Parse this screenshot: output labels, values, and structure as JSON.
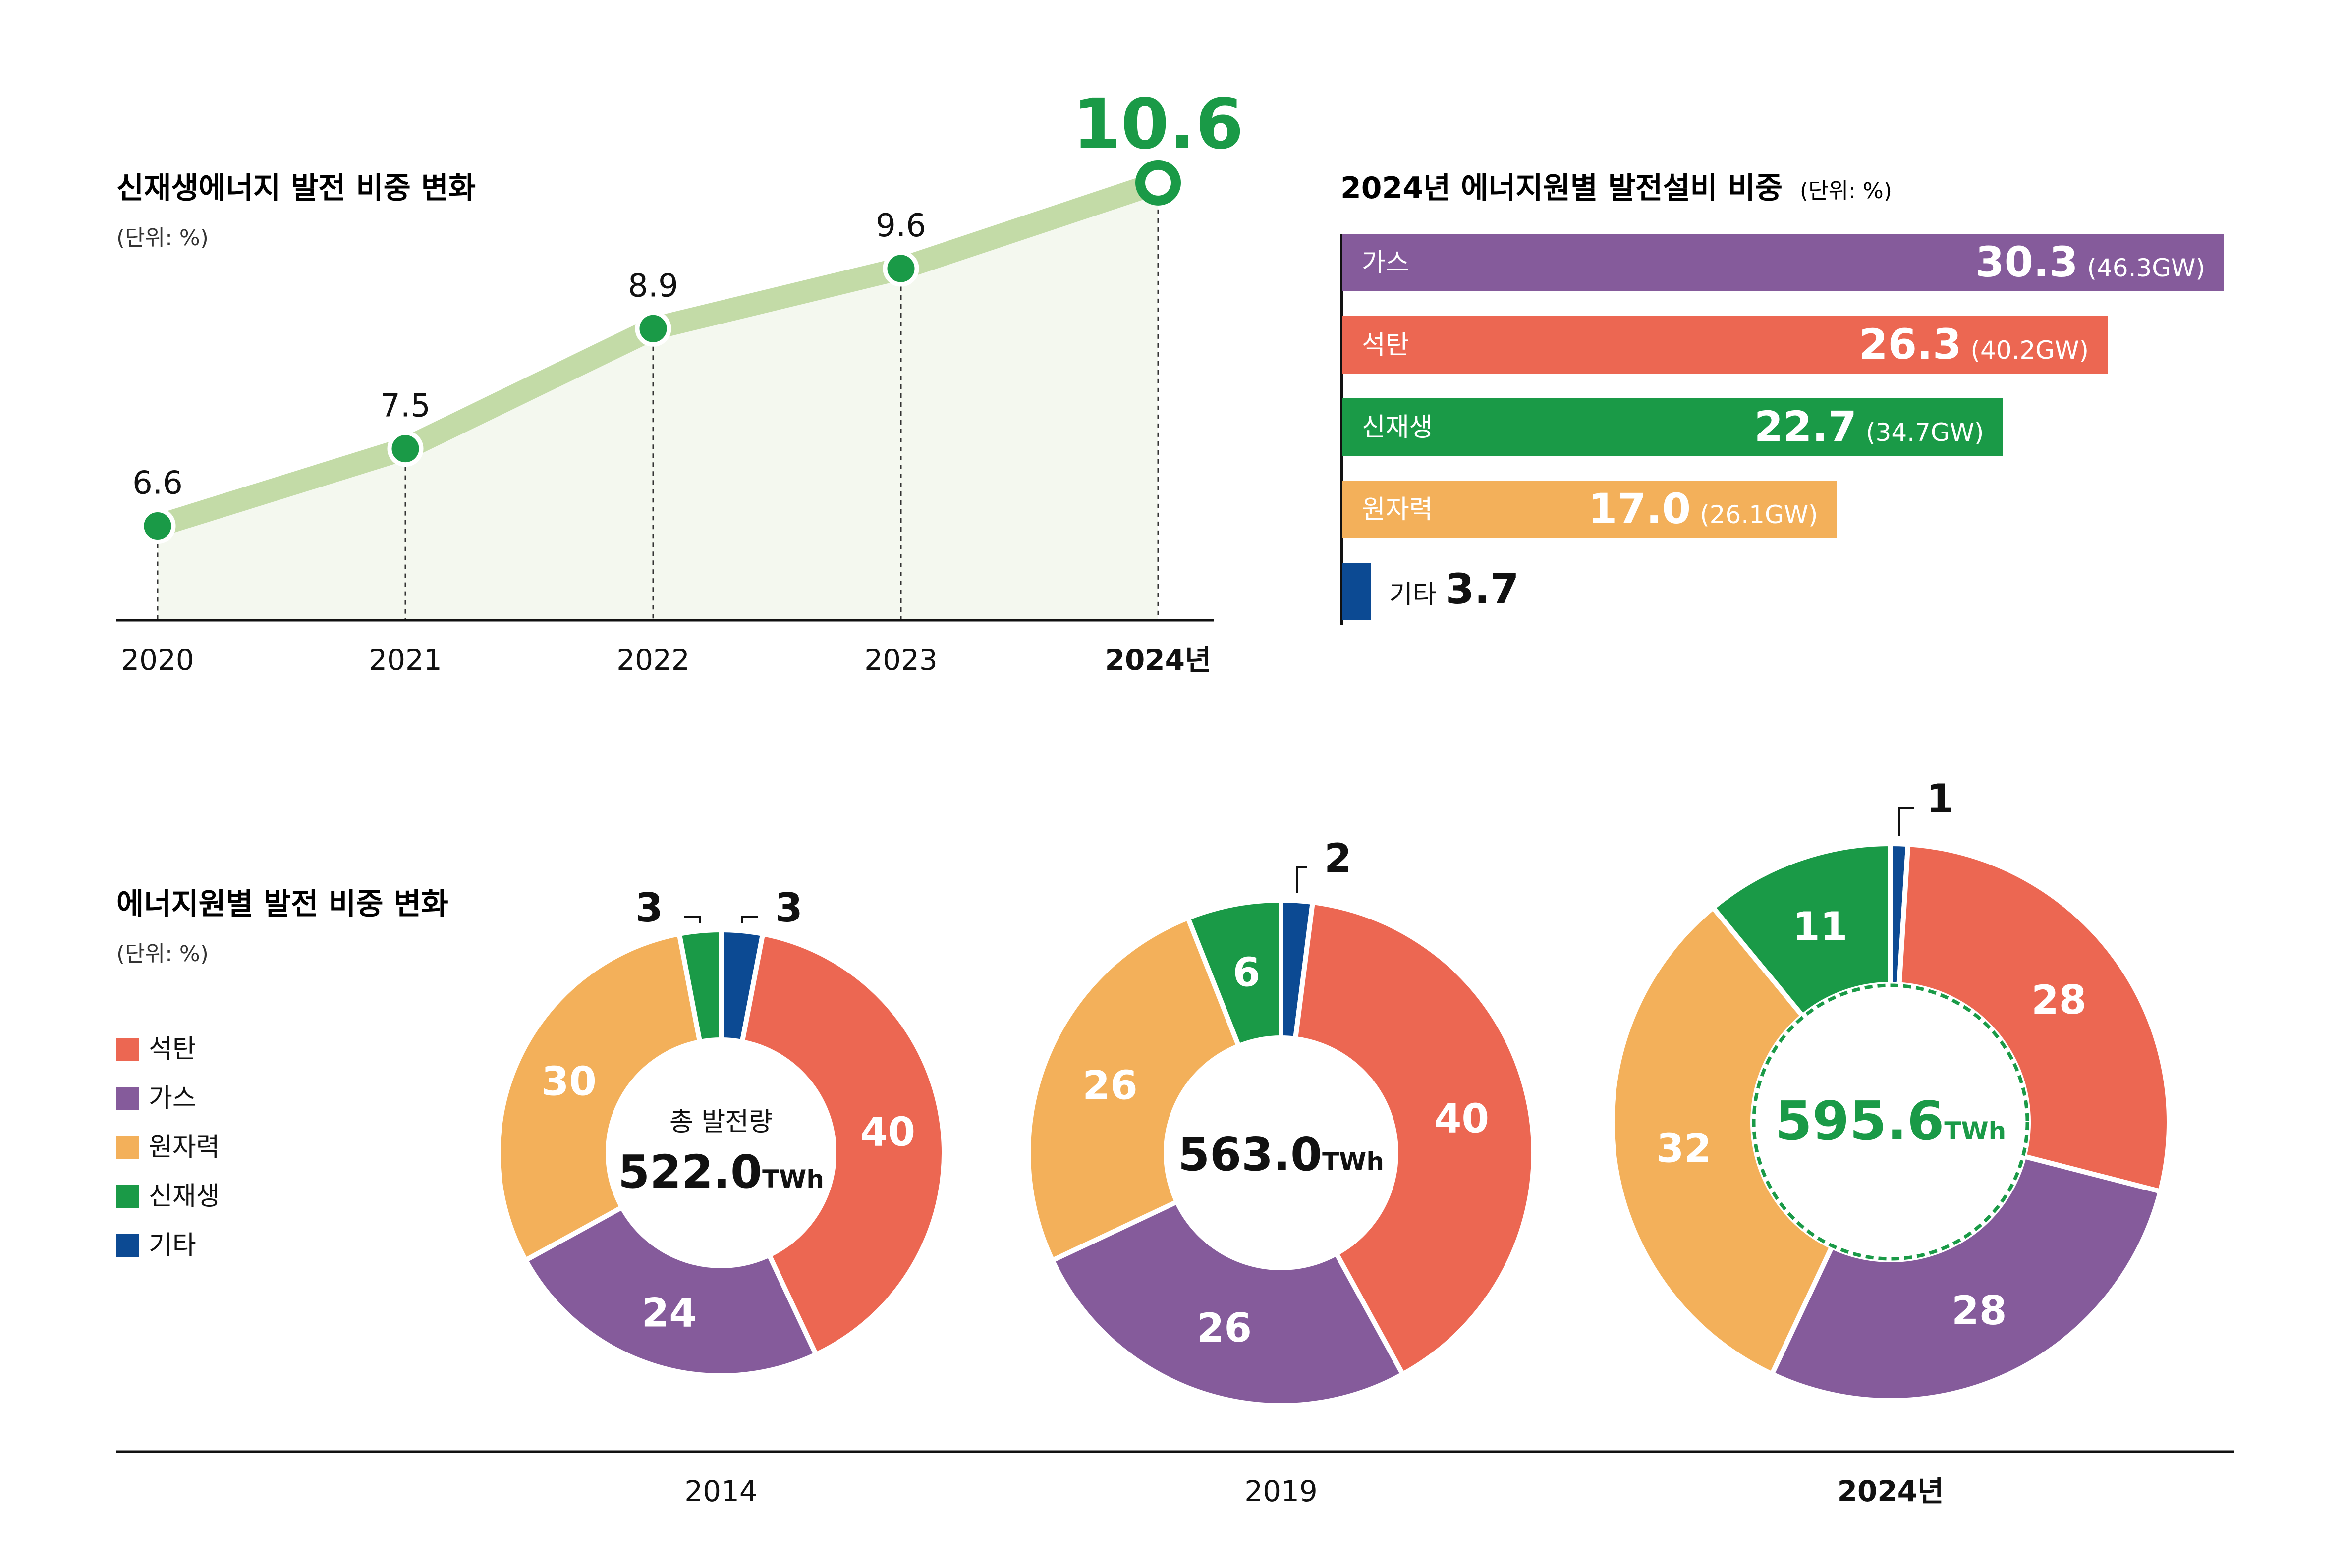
{
  "chart_data": [
    {
      "type": "line",
      "title": "신재생에너지 발전 비중 변화",
      "unit_note": "(단위: %)",
      "categories": [
        "2020",
        "2021",
        "2022",
        "2023",
        "2024년"
      ],
      "values": [
        6.6,
        7.5,
        8.9,
        9.6,
        10.6
      ],
      "value_labels": [
        "6.6",
        "7.5",
        "8.9",
        "9.6",
        "10.6"
      ],
      "ylim": [
        5.5,
        11.2
      ],
      "colors": {
        "line": "#c3dba7",
        "point": "#1a9a47",
        "highlight": "#1a9a47",
        "area": "#f4f8ef"
      }
    },
    {
      "type": "bar",
      "orientation": "horizontal",
      "title": "2024년 에너지원별 발전설비 비중",
      "unit_note": "(단위: %)",
      "bars": [
        {
          "name": "가스",
          "value": 30.3,
          "value_label": "30.3",
          "detail": "(46.3GW)",
          "color": "#855b9b"
        },
        {
          "name": "석탄",
          "value": 26.3,
          "value_label": "26.3",
          "detail": "(40.2GW)",
          "color": "#ec6752"
        },
        {
          "name": "신재생",
          "value": 22.7,
          "value_label": "22.7",
          "detail": "(34.7GW)",
          "color": "#1a9a47"
        },
        {
          "name": "원자력",
          "value": 17.0,
          "value_label": "17.0",
          "detail": "(26.1GW)",
          "color": "#f3b05a"
        },
        {
          "name": "기타",
          "value": 3.7,
          "value_label": "3.7",
          "detail": "",
          "color": "#0c4a93"
        }
      ],
      "xlim": [
        0,
        30.3
      ]
    },
    {
      "type": "pie",
      "title": "에너지원별 발전 비중 변화",
      "unit_note": "(단위: %)",
      "legend": [
        {
          "name": "석탄",
          "color": "#ec6752"
        },
        {
          "name": "가스",
          "color": "#855b9b"
        },
        {
          "name": "원자력",
          "color": "#f3b05a"
        },
        {
          "name": "신재생",
          "color": "#1a9a47"
        },
        {
          "name": "기타",
          "color": "#0c4a93"
        }
      ],
      "donuts": [
        {
          "year": "2014",
          "center_label": "총 발전량",
          "total": "522.0",
          "total_unit": "TWh",
          "slices": [
            {
              "name": "석탄",
              "value": 40,
              "label": "40"
            },
            {
              "name": "가스",
              "value": 24,
              "label": "24"
            },
            {
              "name": "원자력",
              "value": 30,
              "label": "30"
            },
            {
              "name": "신재생",
              "value": 3,
              "label": "3"
            },
            {
              "name": "기타",
              "value": 3,
              "label": "3"
            }
          ]
        },
        {
          "year": "2019",
          "center_label": "",
          "total": "563.0",
          "total_unit": "TWh",
          "slices": [
            {
              "name": "석탄",
              "value": 40,
              "label": "40"
            },
            {
              "name": "가스",
              "value": 26,
              "label": "26"
            },
            {
              "name": "원자력",
              "value": 26,
              "label": "26"
            },
            {
              "name": "신재생",
              "value": 6,
              "label": "6"
            },
            {
              "name": "기타",
              "value": 2,
              "label": "2"
            }
          ]
        },
        {
          "year": "2024년",
          "center_label": "",
          "total": "595.6",
          "total_unit": "TWh",
          "slices": [
            {
              "name": "석탄",
              "value": 28,
              "label": "28"
            },
            {
              "name": "가스",
              "value": 28,
              "label": "28"
            },
            {
              "name": "원자력",
              "value": 32,
              "label": "32"
            },
            {
              "name": "신재생",
              "value": 11,
              "label": "11"
            },
            {
              "name": "기타",
              "value": 1,
              "label": "1"
            }
          ]
        }
      ]
    }
  ]
}
